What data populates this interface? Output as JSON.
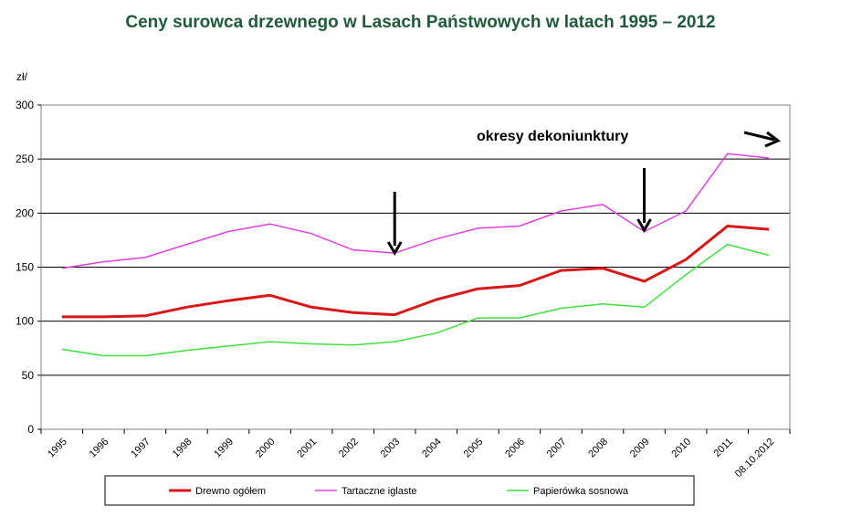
{
  "chart_data": {
    "type": "line",
    "title": "Ceny surowca drzewnego w Lasach Państwowych w latach 1995 – 2012",
    "ylabel": "zł/",
    "xlabel": "",
    "ylim": [
      0,
      300
    ],
    "yticks": [
      0,
      50,
      100,
      150,
      200,
      250,
      300
    ],
    "grid": "horizontal",
    "legend_position": "bottom",
    "categories": [
      "1995",
      "1996",
      "1997",
      "1998",
      "1999",
      "2000",
      "2001",
      "2002",
      "2003",
      "2004",
      "2005",
      "2006",
      "2007",
      "2008",
      "2009",
      "2010",
      "2011",
      "08.10.2012"
    ],
    "series": [
      {
        "name": "Drewno ogółem",
        "color": "#d81818",
        "values": [
          104,
          104,
          105,
          113,
          119,
          124,
          113,
          108,
          106,
          120,
          130,
          133,
          147,
          149,
          137,
          157,
          188,
          185
        ]
      },
      {
        "name": "Tartaczne iglaste",
        "color": "#e040e0",
        "values": [
          149,
          155,
          159,
          171,
          183,
          190,
          181,
          166,
          163,
          176,
          186,
          188,
          202,
          208,
          183,
          202,
          255,
          251
        ]
      },
      {
        "name": "Papierówka sosnowa",
        "color": "#40e040",
        "values": [
          74,
          68,
          68,
          73,
          77,
          81,
          79,
          78,
          81,
          89,
          103,
          103,
          112,
          116,
          113,
          143,
          171,
          161
        ]
      }
    ],
    "annotations": {
      "text": "okresy dekoniunktury",
      "arrows_at": [
        "2003",
        "2009",
        "08.10.2012"
      ]
    }
  }
}
